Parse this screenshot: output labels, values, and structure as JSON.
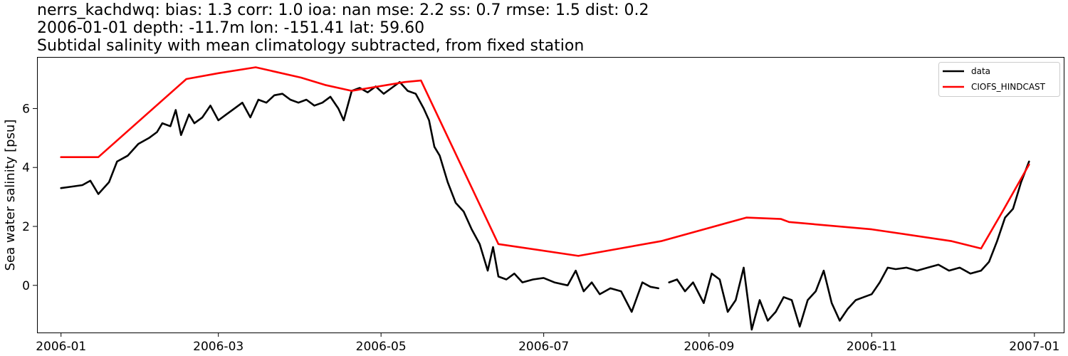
{
  "chart_data": {
    "type": "line",
    "title_lines": [
      "nerrs_kachdwq: bias: 1.3  corr: 1.0  ioa: nan  mse: 2.2  ss: 0.7  rmse: 1.5  dist: 0.2",
      "2006-01-01 depth: -11.7m lon: -151.41 lat: 59.60",
      "Subtidal salinity with mean climatology subtracted, from fixed station"
    ],
    "xlabel": "",
    "ylabel": "Sea water salinity [psu]",
    "xlim": [
      "2005-12-23",
      "2007-01-12"
    ],
    "ylim": [
      -1.6,
      7.75
    ],
    "x_ticks": [
      "2006-01-01",
      "2006-03-01",
      "2006-05-01",
      "2006-07-01",
      "2006-09-01",
      "2006-11-01",
      "2007-01-01"
    ],
    "x_tick_labels": [
      "2006-01",
      "2006-03",
      "2006-05",
      "2006-07",
      "2006-09",
      "2006-11",
      "2007-01"
    ],
    "y_ticks": [
      0,
      2,
      4,
      6
    ],
    "grid": false,
    "legend_position": "top-right",
    "series": [
      {
        "name": "data",
        "color": "#000000",
        "x": [
          "2006-01-01",
          "2006-01-05",
          "2006-01-09",
          "2006-01-12",
          "2006-01-15",
          "2006-01-19",
          "2006-01-22",
          "2006-01-26",
          "2006-01-30",
          "2006-02-03",
          "2006-02-06",
          "2006-02-08",
          "2006-02-11",
          "2006-02-13",
          "2006-02-15",
          "2006-02-18",
          "2006-02-20",
          "2006-02-23",
          "2006-02-26",
          "2006-03-01",
          "2006-03-04",
          "2006-03-07",
          "2006-03-10",
          "2006-03-13",
          "2006-03-16",
          "2006-03-19",
          "2006-03-22",
          "2006-03-25",
          "2006-03-28",
          "2006-03-31",
          "2006-04-03",
          "2006-04-06",
          "2006-04-09",
          "2006-04-12",
          "2006-04-15",
          "2006-04-17",
          "2006-04-20",
          "2006-04-23",
          "2006-04-26",
          "2006-04-29",
          "2006-05-02",
          "2006-05-05",
          "2006-05-08",
          "2006-05-11",
          "2006-05-14",
          "2006-05-17",
          "2006-05-19",
          "2006-05-21",
          "2006-05-23",
          "2006-05-26",
          "2006-05-29",
          "2006-06-01",
          "2006-06-04",
          "2006-06-07",
          "2006-06-10",
          "2006-06-12",
          "2006-06-14",
          "2006-06-17",
          "2006-06-20",
          "2006-06-23",
          "2006-06-27",
          "2006-07-01",
          "2006-07-05",
          "2006-07-10",
          "2006-07-13",
          "2006-07-16",
          "2006-07-19",
          "2006-07-22",
          "2006-07-26",
          "2006-07-30",
          "2006-08-03",
          "2006-08-07",
          "2006-08-10",
          "2006-08-13",
          null,
          "2006-08-17",
          "2006-08-20",
          "2006-08-23",
          "2006-08-26",
          "2006-08-30",
          "2006-09-02",
          "2006-09-05",
          "2006-09-08",
          "2006-09-11",
          "2006-09-14",
          "2006-09-17",
          "2006-09-20",
          "2006-09-23",
          "2006-09-26",
          "2006-09-29",
          "2006-10-02",
          "2006-10-05",
          "2006-10-08",
          "2006-10-11",
          "2006-10-14",
          "2006-10-17",
          "2006-10-20",
          "2006-10-23",
          "2006-10-26",
          "2006-10-29",
          "2006-11-01",
          "2006-11-04",
          "2006-11-07",
          "2006-11-10",
          "2006-11-14",
          "2006-11-18",
          "2006-11-22",
          "2006-11-26",
          "2006-11-30",
          "2006-12-04",
          "2006-12-08",
          "2006-12-12",
          "2006-12-15",
          "2006-12-18",
          "2006-12-21",
          "2006-12-24",
          "2006-12-27",
          "2006-12-30"
        ],
        "values": [
          3.3,
          3.35,
          3.4,
          3.55,
          3.1,
          3.5,
          4.2,
          4.4,
          4.8,
          5.0,
          5.2,
          5.5,
          5.4,
          5.95,
          5.1,
          5.8,
          5.5,
          5.7,
          6.1,
          5.6,
          5.8,
          6.0,
          6.2,
          5.7,
          6.3,
          6.2,
          6.45,
          6.5,
          6.3,
          6.2,
          6.3,
          6.1,
          6.2,
          6.4,
          6.0,
          5.6,
          6.6,
          6.7,
          6.55,
          6.75,
          6.5,
          6.7,
          6.9,
          6.6,
          6.5,
          6.0,
          5.6,
          4.7,
          4.4,
          3.5,
          2.8,
          2.5,
          1.9,
          1.4,
          0.5,
          1.3,
          0.3,
          0.2,
          0.4,
          0.1,
          0.2,
          0.25,
          0.1,
          0.0,
          0.5,
          -0.2,
          0.1,
          -0.3,
          -0.1,
          -0.2,
          -0.9,
          0.1,
          -0.05,
          -0.1,
          null,
          0.1,
          0.2,
          -0.2,
          0.1,
          -0.6,
          0.4,
          0.2,
          -0.9,
          -0.5,
          0.6,
          -1.5,
          -0.5,
          -1.2,
          -0.9,
          -0.4,
          -0.5,
          -1.4,
          -0.5,
          -0.2,
          0.5,
          -0.6,
          -1.2,
          -0.8,
          -0.5,
          -0.4,
          -0.3,
          0.1,
          0.6,
          0.55,
          0.6,
          0.5,
          0.6,
          0.7,
          0.5,
          0.6,
          0.4,
          0.5,
          0.8,
          1.5,
          2.3,
          2.6,
          3.5,
          4.2
        ]
      },
      {
        "name": "CIOFS_HINDCAST",
        "color": "#ff0000",
        "x": [
          "2006-01-01",
          "2006-01-15",
          "2006-02-17",
          "2006-03-01",
          "2006-03-15",
          "2006-04-01",
          "2006-04-10",
          "2006-04-20",
          "2006-05-10",
          "2006-05-16",
          "2006-06-14",
          "2006-07-14",
          "2006-08-14",
          "2006-09-15",
          "2006-09-28",
          "2006-10-01",
          "2006-11-01",
          "2006-12-01",
          "2006-12-12",
          "2006-12-20",
          "2006-12-30"
        ],
        "values": [
          4.35,
          4.35,
          7.0,
          7.2,
          7.4,
          7.05,
          6.8,
          6.6,
          6.9,
          6.95,
          1.4,
          1.0,
          1.5,
          2.3,
          2.25,
          2.15,
          1.9,
          1.5,
          1.25,
          2.5,
          4.1
        ]
      }
    ]
  }
}
